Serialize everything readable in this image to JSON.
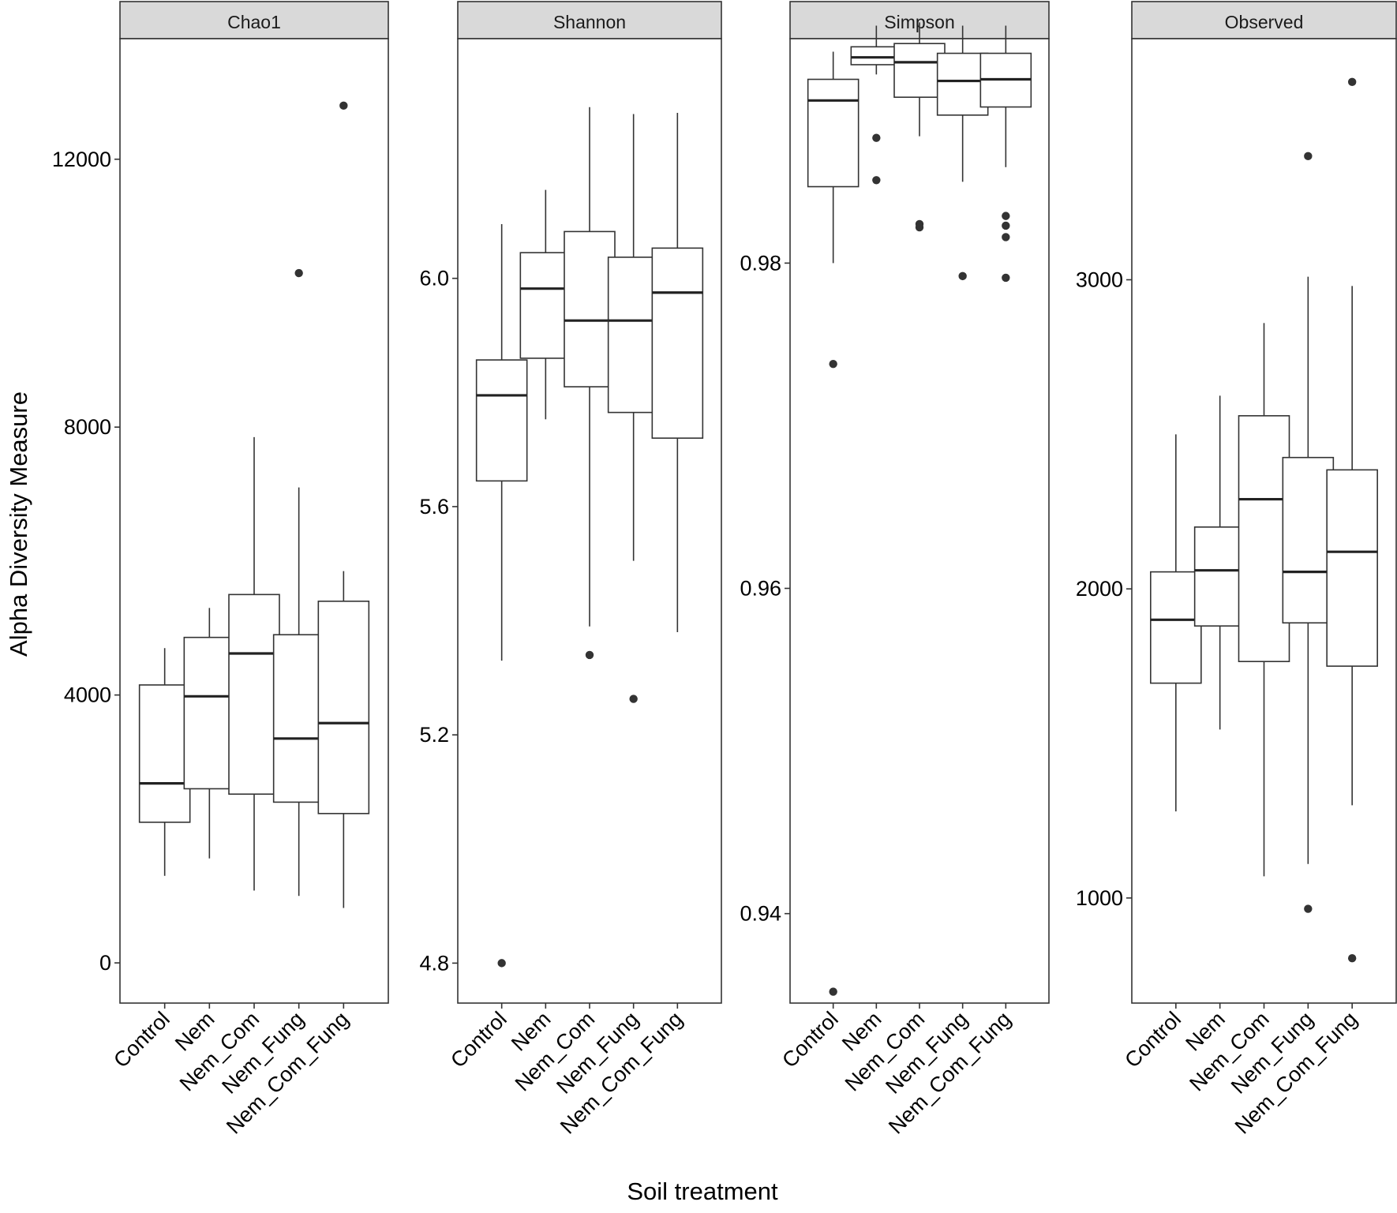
{
  "chart_data": {
    "type": "boxplot",
    "ylabel": "Alpha Diversity Measure",
    "xlabel": "Soil treatment",
    "categories": [
      "Control",
      "Nem",
      "Nem_Com",
      "Nem_Fung",
      "Nem_Com_Fung"
    ],
    "panels": [
      {
        "name": "Chao1",
        "yticks": [
          0,
          4000,
          8000,
          12000
        ],
        "ytick_labels": [
          "0",
          "4000",
          "8000",
          "12000"
        ],
        "ylim": [
          -600,
          13800
        ],
        "boxes": [
          {
            "category": "Control",
            "low": 1300,
            "q1": 2100,
            "median": 2680,
            "q3": 4150,
            "high": 4700,
            "outliers": []
          },
          {
            "category": "Nem",
            "low": 1560,
            "q1": 2600,
            "median": 3980,
            "q3": 4860,
            "high": 5300,
            "outliers": []
          },
          {
            "category": "Nem_Com",
            "low": 1080,
            "q1": 2520,
            "median": 4620,
            "q3": 5500,
            "high": 7850,
            "outliers": []
          },
          {
            "category": "Nem_Fung",
            "low": 1000,
            "q1": 2400,
            "median": 3350,
            "q3": 4900,
            "high": 7100,
            "outliers": [
              10300
            ]
          },
          {
            "category": "Nem_Com_Fung",
            "low": 820,
            "q1": 2230,
            "median": 3580,
            "q3": 5400,
            "high": 5850,
            "outliers": [
              12800
            ]
          }
        ]
      },
      {
        "name": "Shannon",
        "yticks": [
          4.8,
          5.2,
          5.6,
          6.0
        ],
        "ytick_labels": [
          "4.8",
          "5.2",
          "5.6",
          "6.0"
        ],
        "ylim": [
          4.73,
          6.42
        ],
        "boxes": [
          {
            "category": "Control",
            "low": 5.33,
            "q1": 5.645,
            "median": 5.795,
            "q3": 5.857,
            "high": 6.095,
            "outliers": [
              4.8
            ]
          },
          {
            "category": "Nem",
            "low": 5.753,
            "q1": 5.86,
            "median": 5.982,
            "q3": 6.045,
            "high": 6.155,
            "outliers": []
          },
          {
            "category": "Nem_Com",
            "low": 5.39,
            "q1": 5.81,
            "median": 5.926,
            "q3": 6.082,
            "high": 6.3,
            "outliers": [
              5.34
            ]
          },
          {
            "category": "Nem_Fung",
            "low": 5.505,
            "q1": 5.765,
            "median": 5.926,
            "q3": 6.037,
            "high": 6.288,
            "outliers": [
              5.263
            ]
          },
          {
            "category": "Nem_Com_Fung",
            "low": 5.38,
            "q1": 5.72,
            "median": 5.975,
            "q3": 6.053,
            "high": 6.29,
            "outliers": []
          }
        ]
      },
      {
        "name": "Simpson",
        "yticks": [
          0.94,
          0.96,
          0.98
        ],
        "ytick_labels": [
          "0.94",
          "0.96",
          "0.98"
        ],
        "ylim": [
          0.9345,
          0.9938
        ],
        "boxes": [
          {
            "category": "Control",
            "low": 0.98,
            "q1": 0.9847,
            "median": 0.99,
            "q3": 0.9913,
            "high": 0.993,
            "outliers": [
              0.9738,
              0.9352
            ]
          },
          {
            "category": "Nem",
            "low": 0.9916,
            "q1": 0.9922,
            "median": 0.99265,
            "q3": 0.9933,
            "high": 0.9946,
            "outliers": [
              0.9877,
              0.9851
            ]
          },
          {
            "category": "Nem_Com",
            "low": 0.9878,
            "q1": 0.9902,
            "median": 0.99235,
            "q3": 0.9935,
            "high": 0.9948,
            "outliers": [
              0.9824,
              0.9822
            ]
          },
          {
            "category": "Nem_Fung",
            "low": 0.985,
            "q1": 0.9891,
            "median": 0.9912,
            "q3": 0.9929,
            "high": 0.9946,
            "outliers": [
              0.9792
            ]
          },
          {
            "category": "Nem_Com_Fung",
            "low": 0.9859,
            "q1": 0.9896,
            "median": 0.9913,
            "q3": 0.9929,
            "high": 0.9946,
            "outliers": [
              0.9829,
              0.9823,
              0.9816,
              0.9791
            ]
          }
        ]
      },
      {
        "name": "Observed",
        "yticks": [
          1000,
          2000,
          3000
        ],
        "ytick_labels": [
          "1000",
          "2000",
          "3000"
        ],
        "ylim": [
          660,
          3780
        ],
        "boxes": [
          {
            "category": "Control",
            "low": 1280,
            "q1": 1695,
            "median": 1900,
            "q3": 2055,
            "high": 2500,
            "outliers": []
          },
          {
            "category": "Nem",
            "low": 1545,
            "q1": 1880,
            "median": 2060,
            "q3": 2200,
            "high": 2625,
            "outliers": []
          },
          {
            "category": "Nem_Com",
            "low": 1070,
            "q1": 1765,
            "median": 2290,
            "q3": 2560,
            "high": 2860,
            "outliers": []
          },
          {
            "category": "Nem_Fung",
            "low": 1110,
            "q1": 1890,
            "median": 2055,
            "q3": 2425,
            "high": 3010,
            "outliers": [
              965,
              3400
            ]
          },
          {
            "category": "Nem_Com_Fung",
            "low": 1300,
            "q1": 1750,
            "median": 2120,
            "q3": 2385,
            "high": 2980,
            "outliers": [
              805,
              3640
            ]
          }
        ]
      }
    ]
  }
}
